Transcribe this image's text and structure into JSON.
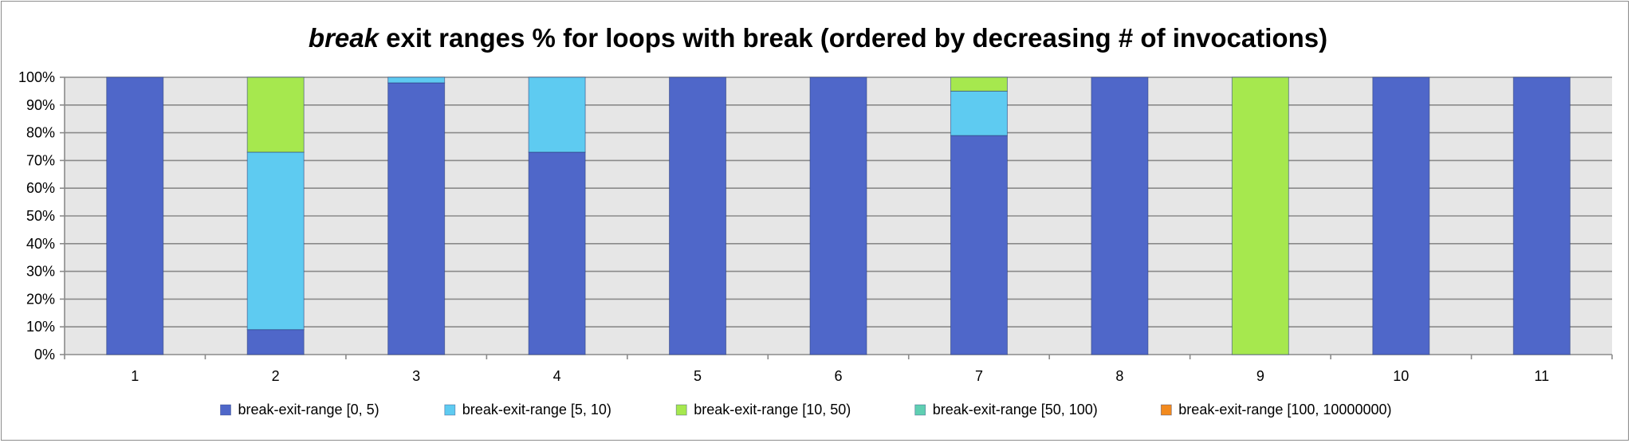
{
  "chart_data": {
    "type": "bar",
    "stacked": true,
    "title_italic": "break",
    "title_rest": " exit ranges % for loops with break (ordered by decreasing # of invocations)",
    "categories": [
      "1",
      "2",
      "3",
      "4",
      "5",
      "6",
      "7",
      "8",
      "9",
      "10",
      "11"
    ],
    "y_ticks": [
      "0%",
      "10%",
      "20%",
      "30%",
      "40%",
      "50%",
      "60%",
      "70%",
      "80%",
      "90%",
      "100%"
    ],
    "ylim": [
      0,
      100
    ],
    "grid": true,
    "legend_position": "bottom",
    "series": [
      {
        "name": "break-exit-range [0, 5)",
        "color": "#4f67c9",
        "values": [
          100,
          9,
          98,
          73,
          100,
          100,
          79,
          100,
          0,
          100,
          100
        ]
      },
      {
        "name": "break-exit-range [5, 10)",
        "color": "#5ecbf1",
        "values": [
          0,
          64,
          2,
          27,
          0,
          0,
          16,
          0,
          0,
          0,
          0
        ]
      },
      {
        "name": "break-exit-range [10, 50)",
        "color": "#a6e84e",
        "values": [
          0,
          27,
          0,
          0,
          0,
          0,
          5,
          0,
          100,
          0,
          0
        ]
      },
      {
        "name": "break-exit-range [50, 100)",
        "color": "#5fcfb2",
        "values": [
          0,
          0,
          0,
          0,
          0,
          0,
          0,
          0,
          0,
          0,
          0
        ]
      },
      {
        "name": "break-exit-range [100, 10000000)",
        "color": "#f28a1e",
        "values": [
          0,
          0,
          0,
          0,
          0,
          0,
          0,
          0,
          0,
          0,
          0
        ]
      }
    ]
  }
}
